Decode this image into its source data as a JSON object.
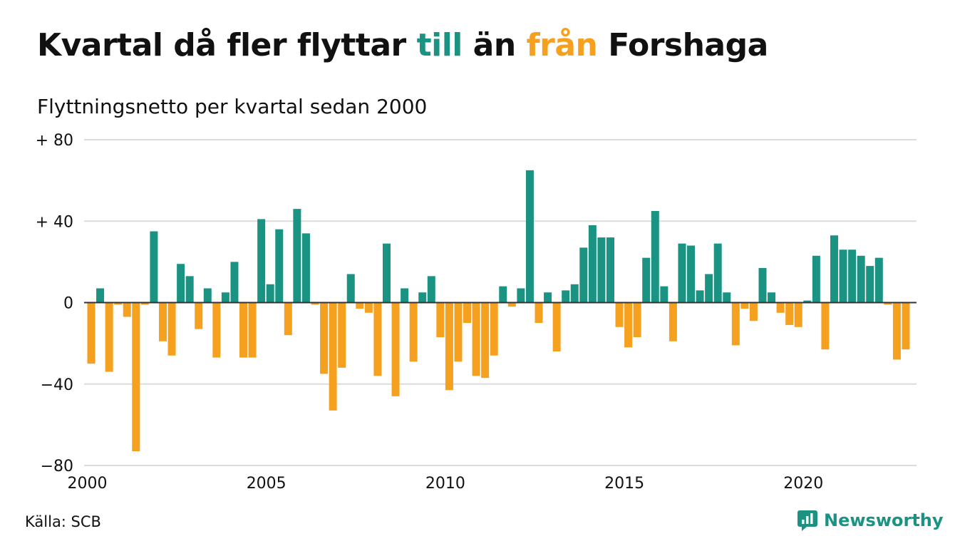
{
  "title": {
    "part1": "Kvartal då fler flyttar ",
    "highlight_in": "till",
    "part2": " än ",
    "highlight_out": "från",
    "part3": " Forshaga"
  },
  "subtitle": "Flyttningsnetto per kvartal sedan 2000",
  "source": "Källa: SCB",
  "brand": {
    "name": "Newsworthy",
    "icon": "newsworthy-logo-icon"
  },
  "colors": {
    "positive": "#1b9383",
    "negative": "#f5a11f",
    "grid": "#dcdcdc",
    "zero_line": "#333333"
  },
  "chart_data": {
    "type": "bar",
    "title": "Kvartal då fler flyttar till än från Forshaga",
    "subtitle": "Flyttningsnetto per kvartal sedan 2000",
    "xlabel": "",
    "ylabel": "",
    "x_start": "2000-Q1",
    "frequency": "quarterly",
    "x_ticks": [
      "2000",
      "2005",
      "2010",
      "2015",
      "2020"
    ],
    "y_ticks": [
      "+ 80",
      "+ 40",
      "0",
      "−40",
      "−80"
    ],
    "ylim": [
      -80,
      80
    ],
    "grid": true,
    "legend": "none",
    "values": [
      -30,
      7,
      -34,
      -1,
      -7,
      -73,
      -1,
      35,
      -19,
      -26,
      19,
      13,
      -13,
      7,
      -27,
      5,
      20,
      -27,
      -27,
      41,
      9,
      36,
      -16,
      46,
      34,
      -1,
      -35,
      -53,
      -32,
      14,
      -3,
      -5,
      -36,
      29,
      -46,
      7,
      -29,
      5,
      13,
      -17,
      -43,
      -29,
      -10,
      -36,
      -37,
      -26,
      8,
      -2,
      7,
      65,
      -10,
      5,
      -24,
      6,
      9,
      27,
      38,
      32,
      32,
      -12,
      -22,
      -17,
      22,
      45,
      8,
      -19,
      29,
      28,
      6,
      14,
      29,
      5,
      -21,
      -3,
      -9,
      17,
      5,
      -5,
      -11,
      -12,
      1,
      23,
      -23,
      33,
      26,
      26,
      23,
      18,
      22,
      -1,
      -28,
      -23
    ]
  }
}
